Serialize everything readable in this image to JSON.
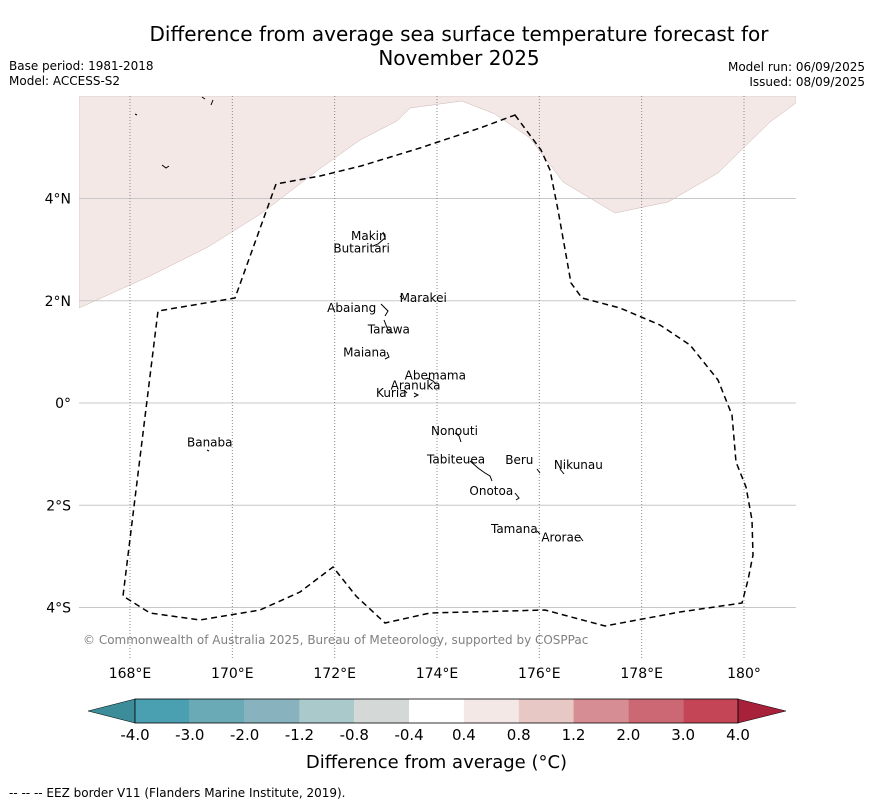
{
  "title_line1": "Difference from average sea surface temperature forecast for",
  "title_line2": "November 2025",
  "base_period": "Base period: 1981-2018",
  "model": "Model: ACCESS-S2",
  "model_run": "Model run: 06/09/2025",
  "issued": "Issued: 08/09/2025",
  "copyright": "© Commonwealth of Australia 2025, Bureau of Meteorology, supported by COSPPac",
  "map": {
    "lon_range": [
      167,
      181
    ],
    "lat_range": [
      -5,
      6
    ],
    "lon_ticks": [
      {
        "value": 168,
        "label": "168°E"
      },
      {
        "value": 170,
        "label": "170°E"
      },
      {
        "value": 172,
        "label": "172°E"
      },
      {
        "value": 174,
        "label": "174°E"
      },
      {
        "value": 176,
        "label": "176°E"
      },
      {
        "value": 178,
        "label": "178°E"
      },
      {
        "value": 180,
        "label": "180°"
      }
    ],
    "lat_ticks": [
      {
        "value": 4,
        "label": "4°N"
      },
      {
        "value": 2,
        "label": "2°N"
      },
      {
        "value": 0,
        "label": "0°"
      },
      {
        "value": -2,
        "label": "2°S"
      },
      {
        "value": -4,
        "label": "4°S"
      }
    ],
    "anomaly_fill_color": "#f4e8e6",
    "islands": [
      {
        "name": "Makin",
        "lon": 173.0,
        "lat": 3.15
      },
      {
        "name": "Butaritari",
        "lon": 172.8,
        "lat": 3.0
      },
      {
        "name": "Marakei",
        "lon": 173.3,
        "lat": 2.0
      },
      {
        "name": "Abaiang",
        "lon": 172.9,
        "lat": 1.8
      },
      {
        "name": "Tarawa",
        "lon": 173.0,
        "lat": 1.4
      },
      {
        "name": "Maiana",
        "lon": 173.0,
        "lat": 0.95
      },
      {
        "name": "Abemama",
        "lon": 173.85,
        "lat": 0.4
      },
      {
        "name": "Kuria",
        "lon": 173.4,
        "lat": 0.2
      },
      {
        "name": "Aranuka",
        "lon": 173.6,
        "lat": 0.15
      },
      {
        "name": "Banaba",
        "lon": 169.5,
        "lat": -0.85
      },
      {
        "name": "Nonouti",
        "lon": 174.4,
        "lat": -0.65
      },
      {
        "name": "Tabiteuea",
        "lon": 174.9,
        "lat": -1.3
      },
      {
        "name": "Beru",
        "lon": 176.0,
        "lat": -1.35
      },
      {
        "name": "Nikunau",
        "lon": 176.45,
        "lat": -1.35
      },
      {
        "name": "Onotoa",
        "lon": 175.55,
        "lat": -1.8
      },
      {
        "name": "Tamana",
        "lon": 176.0,
        "lat": -2.5
      },
      {
        "name": "Arorae",
        "lon": 176.8,
        "lat": -2.65
      }
    ]
  },
  "colorbar": {
    "labels": [
      "-4.0",
      "-3.0",
      "-2.0",
      "-1.2",
      "-0.8",
      "-0.4",
      "0.4",
      "0.8",
      "1.2",
      "2.0",
      "3.0",
      "4.0"
    ],
    "colors": [
      "#3d8c99",
      "#4aa0b0",
      "#6aaab7",
      "#88b3be",
      "#a9c9cb",
      "#d4d9d8",
      "#ffffff",
      "#f4e8e6",
      "#e8c8c4",
      "#d68e94",
      "#cc6873",
      "#c34556",
      "#a8213a"
    ],
    "label": "Difference from average (°C)"
  },
  "legend_footer": "--  --  -- EEZ border V11 (Flanders Marine Institute, 2019)."
}
